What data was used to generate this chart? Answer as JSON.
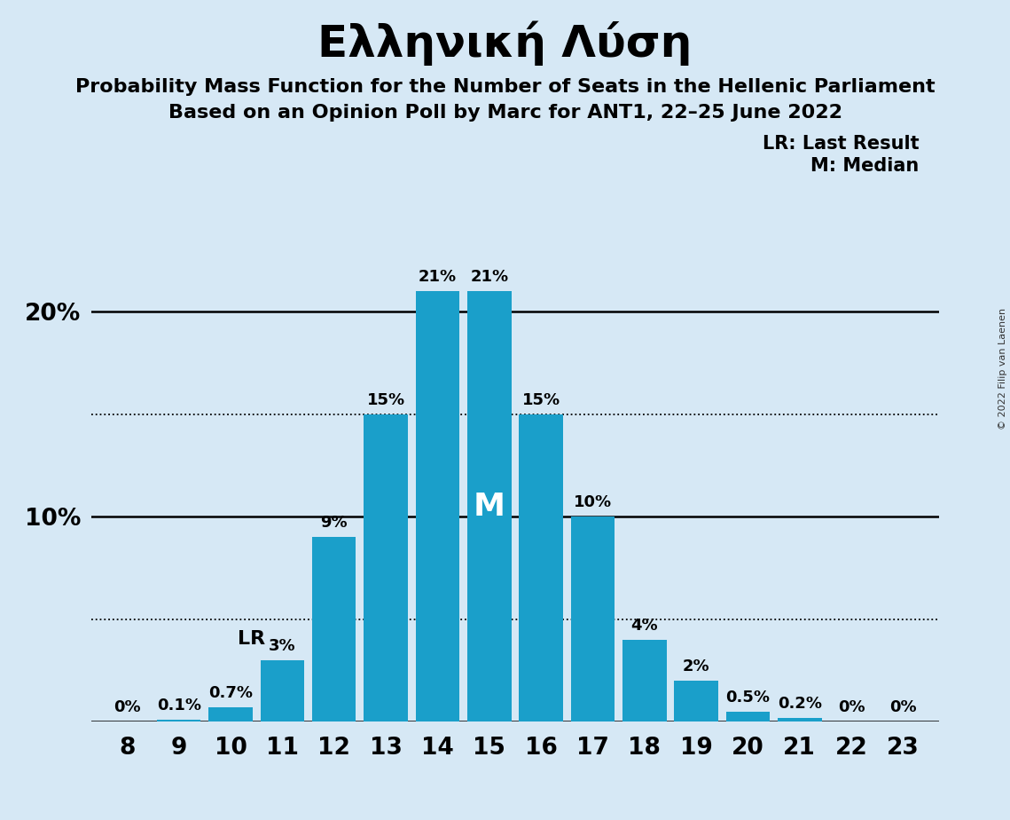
{
  "title": "Ελληνική Λύση",
  "subtitle1": "Probability Mass Function for the Number of Seats in the Hellenic Parliament",
  "subtitle2": "Based on an Opinion Poll by Marc for ANT1, 22–25 June 2022",
  "copyright": "© 2022 Filip van Laenen",
  "seats": [
    8,
    9,
    10,
    11,
    12,
    13,
    14,
    15,
    16,
    17,
    18,
    19,
    20,
    21,
    22,
    23
  ],
  "probabilities": [
    0.0,
    0.1,
    0.7,
    3.0,
    9.0,
    15.0,
    21.0,
    21.0,
    15.0,
    10.0,
    4.0,
    2.0,
    0.5,
    0.2,
    0.0,
    0.0
  ],
  "bar_color": "#1a9fca",
  "background_color": "#d6e8f5",
  "median_seat": 15,
  "lr_seat": 11,
  "legend_lr": "LR: Last Result",
  "legend_m": "M: Median",
  "dotted_lines": [
    5,
    15
  ],
  "solid_lines": [
    10,
    20
  ],
  "ylim": [
    0,
    24
  ],
  "label_fontsize": 13,
  "tick_fontsize": 19,
  "title_fontsize": 36,
  "subtitle_fontsize": 16,
  "legend_fontsize": 15
}
